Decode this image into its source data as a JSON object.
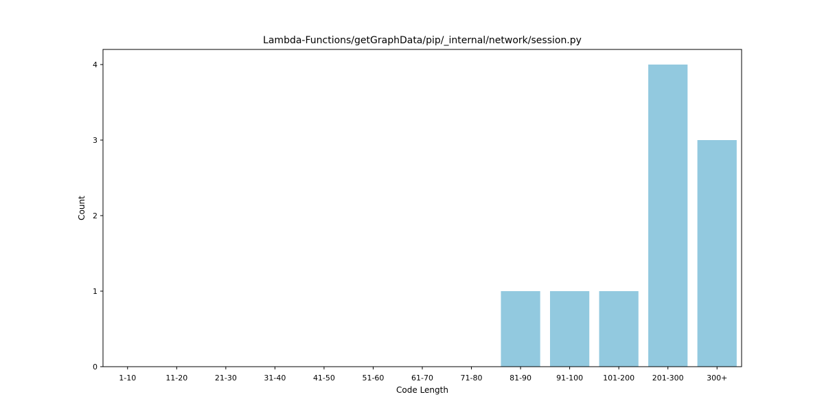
{
  "chart_data": {
    "type": "bar",
    "title": "Lambda-Functions/getGraphData/pip/_internal/network/session.py",
    "xlabel": "Code Length",
    "ylabel": "Count",
    "categories": [
      "1-10",
      "11-20",
      "21-30",
      "31-40",
      "41-50",
      "51-60",
      "61-70",
      "71-80",
      "81-90",
      "91-100",
      "101-200",
      "201-300",
      "300+"
    ],
    "values": [
      0,
      0,
      0,
      0,
      0,
      0,
      0,
      0,
      1,
      1,
      1,
      4,
      3
    ],
    "yticks": [
      "0",
      "1",
      "2",
      "3",
      "4"
    ],
    "ylim": [
      0,
      4.2
    ],
    "grid": false,
    "bar_color": "#92c9df"
  }
}
